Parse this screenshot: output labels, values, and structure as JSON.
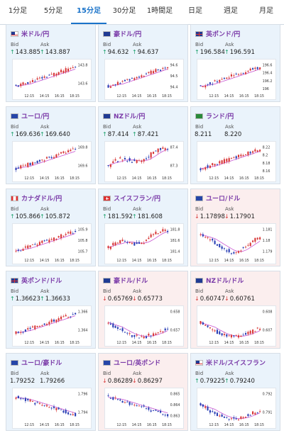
{
  "tabs": [
    {
      "label": "1分足",
      "active": false
    },
    {
      "label": "5分足",
      "active": false
    },
    {
      "label": "15分足",
      "active": true
    },
    {
      "label": "30分足",
      "active": false
    },
    {
      "label": "1時間足",
      "active": false
    },
    {
      "label": "日足",
      "active": false
    },
    {
      "label": "週足",
      "active": false
    },
    {
      "label": "月足",
      "active": false
    }
  ],
  "labels": {
    "bid": "Bid",
    "ask": "Ask"
  },
  "time_ticks": [
    "12:15",
    "14:15",
    "16:15",
    "18:15"
  ],
  "cards": [
    {
      "name": "米ドル/円",
      "dir": "up",
      "bid": "143.885",
      "ask": "143.887",
      "flag": "us",
      "yticks": [
        "143.8",
        "143.6"
      ],
      "trend": "up"
    },
    {
      "name": "豪ドル/円",
      "dir": "up",
      "bid": "94.632",
      "ask": "94.637",
      "flag": "au",
      "yticks": [
        "94.6",
        "94.5",
        "94.4"
      ],
      "trend": "up"
    },
    {
      "name": "英ポンド/円",
      "dir": "up",
      "bid": "196.584",
      "ask": "196.591",
      "flag": "uk",
      "yticks": [
        "196.6",
        "196.4",
        "196.2",
        "196"
      ],
      "trend": "up"
    },
    {
      "name": "ユーロ/円",
      "dir": "up",
      "bid": "169.636",
      "ask": "169.640",
      "flag": "eu",
      "yticks": [
        "169.8",
        "169.6"
      ],
      "trend": "up"
    },
    {
      "name": "NZドル/円",
      "dir": "up",
      "bid": "87.414",
      "ask": "87.421",
      "flag": "nz",
      "yticks": [
        "87.4",
        "87.3"
      ],
      "trend": "upwave"
    },
    {
      "name": "ランド/円",
      "dir": "none",
      "bid": "8.211",
      "ask": "8.220",
      "flag": "za",
      "yticks": [
        "8.22",
        "8.2",
        "8.18",
        "8.16"
      ],
      "trend": "up"
    },
    {
      "name": "カナダドル/円",
      "dir": "up",
      "bid": "105.866",
      "ask": "105.872",
      "flag": "ca",
      "yticks": [
        "105.9",
        "105.8",
        "105.7"
      ],
      "trend": "up"
    },
    {
      "name": "スイスフラン/円",
      "dir": "up",
      "bid": "181.592",
      "ask": "181.608",
      "flag": "ch",
      "yticks": [
        "181.8",
        "181.6",
        "181.4"
      ],
      "trend": "upwave"
    },
    {
      "name": "ユーロ/ドル",
      "dir": "down",
      "bid": "1.17898",
      "ask": "1.17901",
      "flag": "eu",
      "yticks": [
        "1.181",
        "1.18",
        "1.179"
      ],
      "trend": "vshape"
    },
    {
      "name": "英ポンド/ドル",
      "dir": "up",
      "bid": "1.36623",
      "ask": "1.36633",
      "flag": "uk",
      "yticks": [
        "1.366",
        "1.364"
      ],
      "trend": "up"
    },
    {
      "name": "豪ドル/ドル",
      "dir": "down",
      "bid": "0.65769",
      "ask": "0.65773",
      "flag": "au",
      "yticks": [
        "0.658",
        "0.657"
      ],
      "trend": "dipup"
    },
    {
      "name": "NZドル/ドル",
      "dir": "down",
      "bid": "0.60747",
      "ask": "0.60761",
      "flag": "nz",
      "yticks": [
        "0.608",
        "0.607"
      ],
      "trend": "dipup"
    },
    {
      "name": "ユーロ/豪ドル",
      "dir": "none",
      "bid": "1.79252",
      "ask": "1.79266",
      "flag": "eu",
      "yticks": [
        "1.796",
        "1.794"
      ],
      "trend": "down"
    },
    {
      "name": "ユーロ/英ポンド",
      "dir": "down",
      "bid": "0.86289",
      "ask": "0.86297",
      "flag": "eu",
      "yticks": [
        "0.865",
        "0.864",
        "0.863"
      ],
      "trend": "down"
    },
    {
      "name": "米ドル/スイスフラン",
      "dir": "up",
      "bid": "0.79225",
      "ask": "0.79240",
      "flag": "us",
      "yticks": [
        "0.792",
        "0.791"
      ],
      "trend": "dipup"
    }
  ],
  "colors": {
    "up_bg": "#eaf3fb",
    "down_bg": "#fbeeee",
    "candle_up": "#d83838",
    "candle_down": "#2a3fb5",
    "ma": "#c64fd0",
    "up_arrow": "#1aa06b",
    "down_arrow": "#d83838",
    "title": "#7a3aa8"
  }
}
